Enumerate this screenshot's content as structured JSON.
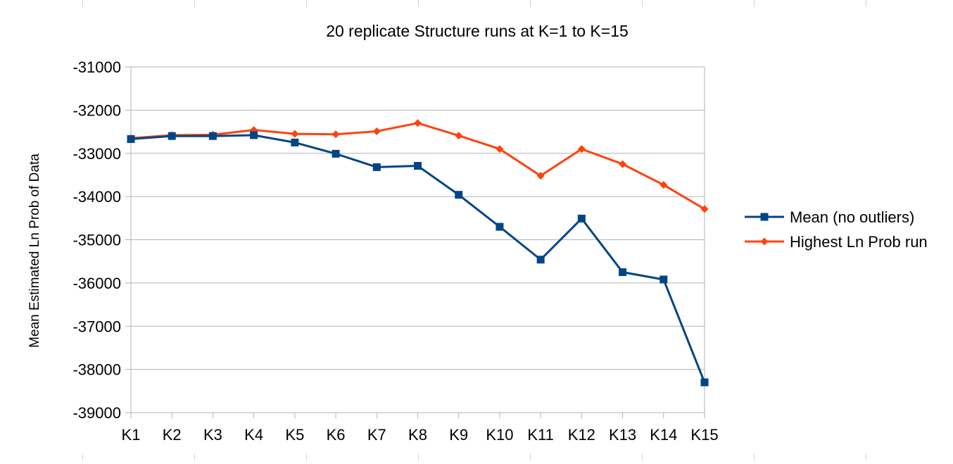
{
  "chart_data": {
    "type": "line",
    "title": "20 replicate Structure runs at K=1 to K=15",
    "xlabel": "",
    "ylabel": "Mean Estimated Ln Prob of Data",
    "categories": [
      "K1",
      "K2",
      "K3",
      "K4",
      "K5",
      "K6",
      "K7",
      "K8",
      "K9",
      "K10",
      "K11",
      "K12",
      "K13",
      "K14",
      "K15"
    ],
    "ylim": [
      -39000,
      -31000
    ],
    "yticks": [
      -31000,
      -32000,
      -33000,
      -34000,
      -35000,
      -36000,
      -37000,
      -38000,
      -39000
    ],
    "grid": true,
    "legend_position": "right",
    "series": [
      {
        "name": "Mean (no outliers)",
        "color": "#004586",
        "marker": "square",
        "values": [
          -32670,
          -32600,
          -32600,
          -32580,
          -32750,
          -33010,
          -33320,
          -33290,
          -33960,
          -34700,
          -35460,
          -34510,
          -35750,
          -35920,
          -38300
        ]
      },
      {
        "name": "Highest Ln Prob run",
        "color": "#ff420e",
        "marker": "diamond",
        "values": [
          -32650,
          -32580,
          -32570,
          -32460,
          -32550,
          -32560,
          -32490,
          -32300,
          -32590,
          -32900,
          -33520,
          -32900,
          -33250,
          -33730,
          -34290
        ]
      }
    ]
  }
}
